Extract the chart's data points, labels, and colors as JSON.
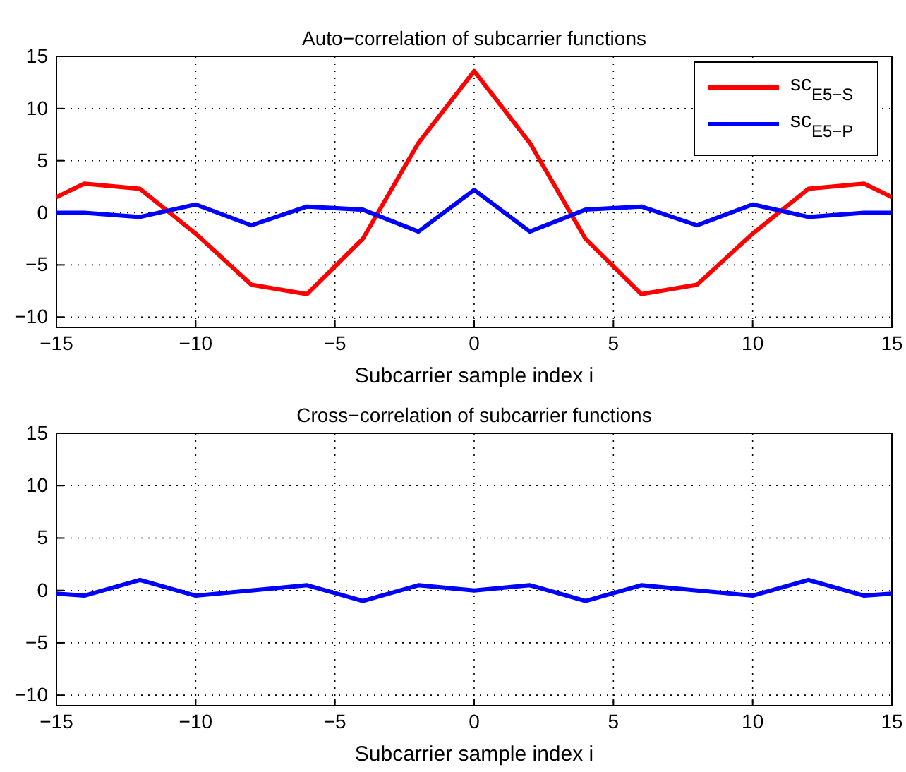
{
  "chart_data": [
    {
      "type": "line",
      "title": "Auto−correlation of subcarrier functions",
      "xlabel": "Subcarrier sample index i",
      "x": [
        -15,
        -14,
        -12,
        -10,
        -8,
        -6,
        -4,
        -2,
        0,
        2,
        4,
        6,
        8,
        10,
        12,
        14,
        15
      ],
      "series": [
        {
          "name": "sc$_{E5−S}$",
          "color": "#ff0000",
          "values": [
            1.5,
            2.8,
            2.3,
            -2,
            -6.9,
            -7.8,
            -2.5,
            6.7,
            13.6,
            6.7,
            -2.5,
            -7.8,
            -6.9,
            -2,
            2.3,
            2.8,
            1.5
          ]
        },
        {
          "name": "sc$_{E5−P}$",
          "color": "#0000ff",
          "values": [
            0,
            0,
            -0.4,
            0.8,
            -1.2,
            0.6,
            0.3,
            -1.8,
            2.2,
            -1.8,
            0.3,
            0.6,
            -1.2,
            0.8,
            -0.4,
            0,
            0
          ]
        }
      ],
      "xlim": [
        -15,
        15
      ],
      "xticks": [
        -15,
        -10,
        -5,
        0,
        5,
        10,
        15
      ],
      "ylim": [
        -11,
        15
      ],
      "yticks": [
        -10,
        -5,
        0,
        5,
        10,
        15
      ],
      "grid": true,
      "legend": "top right",
      "line_style": "solid"
    },
    {
      "type": "line",
      "title": "Cross−correlation of subcarrier functions",
      "xlabel": "Subcarrier sample index i",
      "x": [
        -15,
        -14,
        -12,
        -10,
        -8,
        -6,
        -4,
        -2,
        0,
        2,
        4,
        6,
        8,
        10,
        12,
        14,
        15
      ],
      "series": [
        {
          "color": "#0000ff",
          "values": [
            -0.3,
            -0.5,
            1,
            -0.5,
            0,
            0.5,
            -1,
            0.5,
            0,
            0.5,
            -1,
            0.5,
            0,
            -0.5,
            1,
            -0.5,
            -0.3
          ]
        }
      ],
      "xlim": [
        -15,
        15
      ],
      "xticks": [
        -15,
        -10,
        -5,
        0,
        5,
        10,
        15
      ],
      "ylim": [
        -11,
        15
      ],
      "yticks": [
        -10,
        -5,
        0,
        5,
        10,
        15
      ],
      "grid": true,
      "legend": false,
      "line_style": "solid"
    }
  ]
}
